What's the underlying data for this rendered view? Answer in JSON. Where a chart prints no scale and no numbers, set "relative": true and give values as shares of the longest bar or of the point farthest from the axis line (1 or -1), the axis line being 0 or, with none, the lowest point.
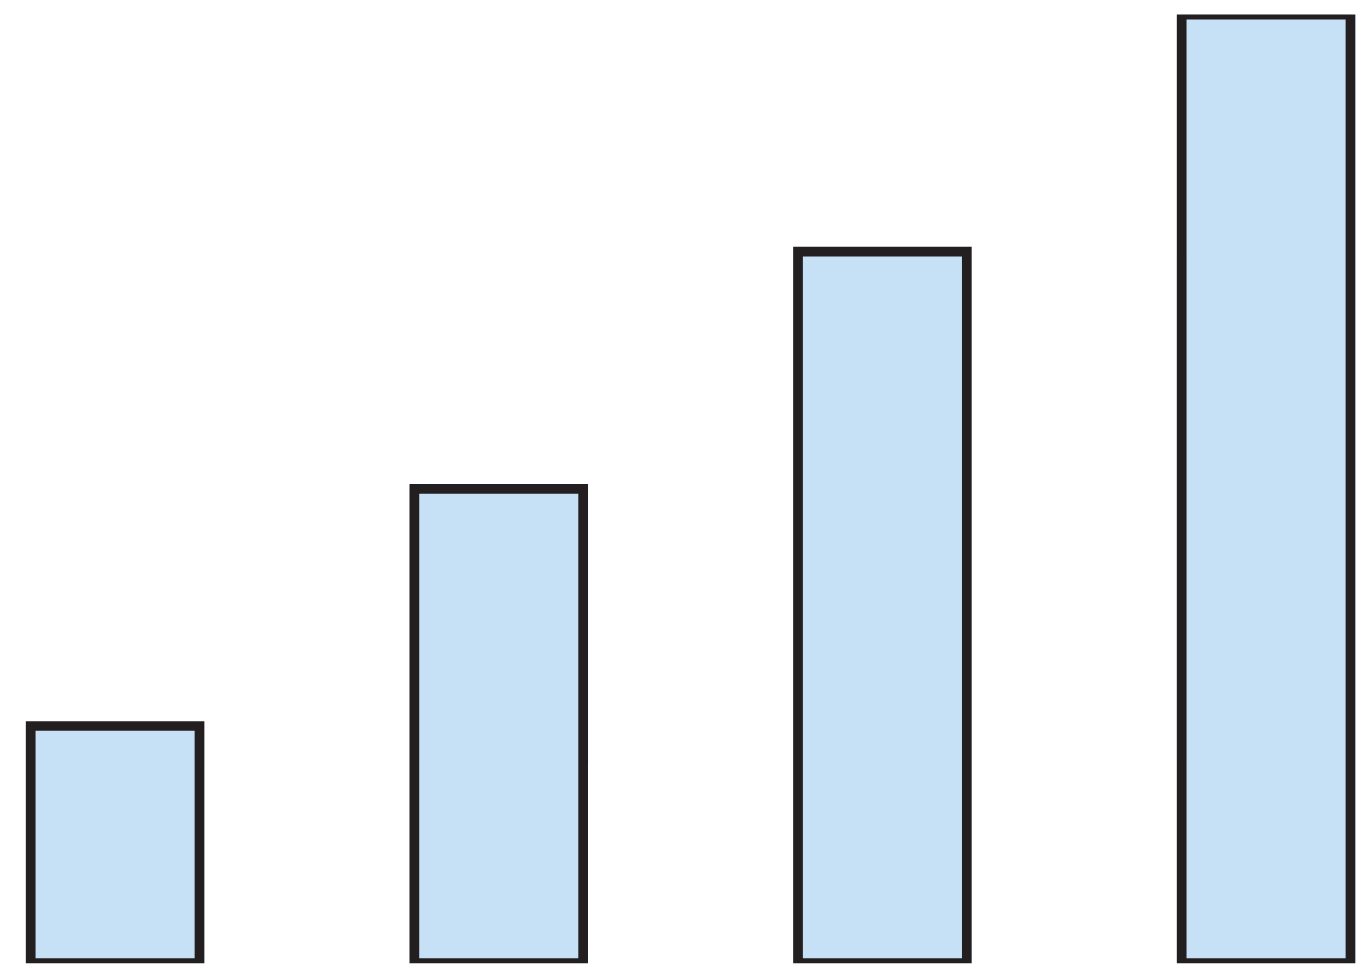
{
  "chart_data": {
    "type": "bar",
    "relative": true,
    "categories": [
      null,
      null,
      null,
      null
    ],
    "values": [
      0.25,
      0.5,
      0.75,
      1
    ],
    "color": "#c6e0f5",
    "grid": false,
    "legend": false
  }
}
